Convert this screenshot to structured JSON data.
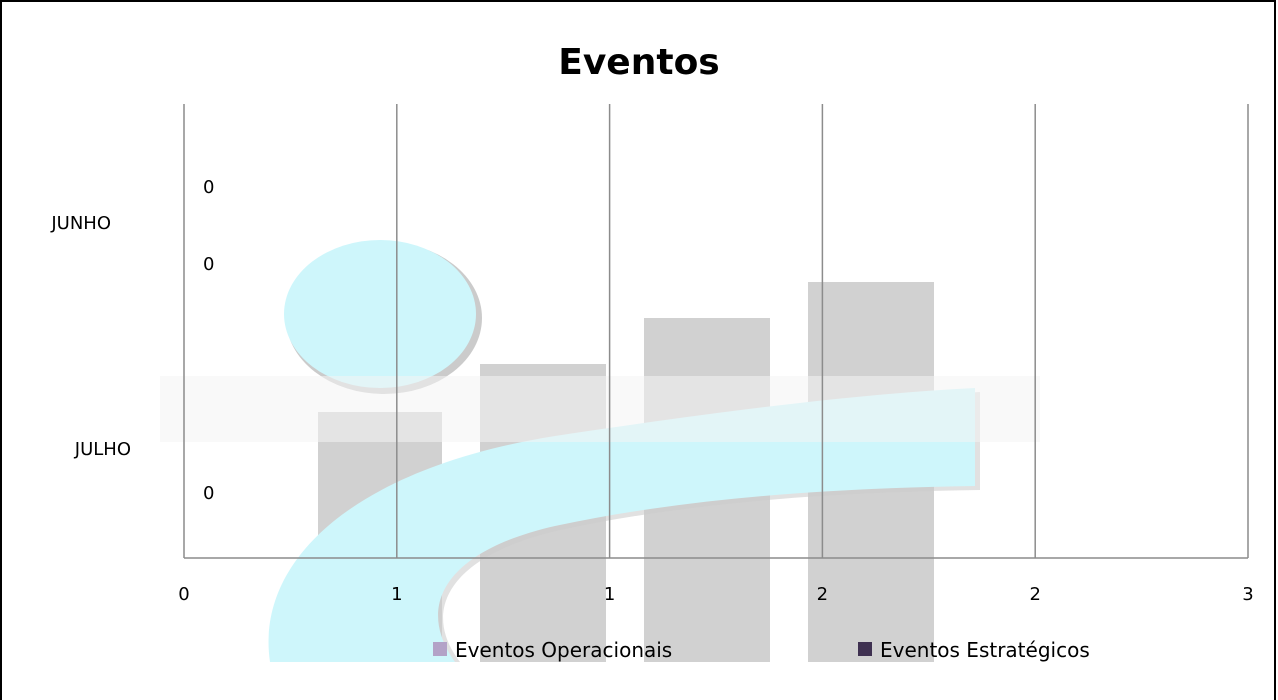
{
  "chart_data": {
    "type": "bar",
    "orientation": "horizontal",
    "title": "Eventos",
    "categories": [
      "JUNHO",
      "JULHO"
    ],
    "series": [
      {
        "name": "Eventos Operacionais",
        "values": [
          0,
          0
        ],
        "color": "#b3a2c7"
      },
      {
        "name": "Eventos Estratégicos",
        "values": [
          0,
          0
        ],
        "color": "#3f3151"
      }
    ],
    "data_labels": [
      "0",
      "0",
      "0"
    ],
    "x_tick_labels": [
      "0",
      "1",
      "1",
      "2",
      "2",
      "3"
    ],
    "xlim": [
      0,
      3
    ],
    "grid": true,
    "legend_position": "bottom",
    "gridline_color": "#8c8c8c"
  }
}
